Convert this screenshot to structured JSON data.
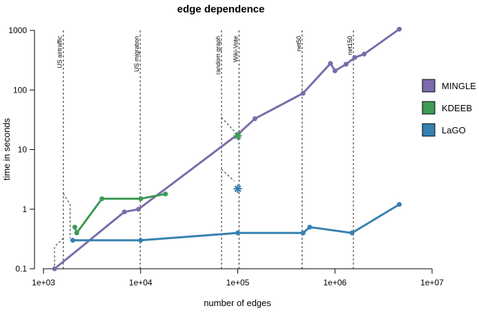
{
  "chart_data": {
    "type": "line",
    "title": "edge dependence",
    "xlabel": "number of edges",
    "ylabel": "time in seconds",
    "xscale": "log",
    "yscale": "log",
    "xlim": [
      1000,
      10000000
    ],
    "ylim": [
      0.1,
      1000
    ],
    "x_ticks": [
      {
        "value": 1000,
        "label": "1e+03"
      },
      {
        "value": 10000,
        "label": "1e+04"
      },
      {
        "value": 100000,
        "label": "1e+05"
      },
      {
        "value": 1000000,
        "label": "1e+06"
      },
      {
        "value": 10000000,
        "label": "1e+07"
      }
    ],
    "y_ticks": [
      {
        "value": 0.1,
        "label": "0.1"
      },
      {
        "value": 1,
        "label": "1"
      },
      {
        "value": 10,
        "label": "10"
      },
      {
        "value": 100,
        "label": "100"
      },
      {
        "value": 1000,
        "label": "1000"
      }
    ],
    "grid": false,
    "legend_position": "right",
    "series": [
      {
        "name": "MINGLE",
        "color": "#7b6bab",
        "points": [
          [
            1300,
            0.1
          ],
          [
            6800,
            0.9
          ],
          [
            9500,
            1.0
          ],
          [
            100000,
            18
          ],
          [
            150000,
            33
          ],
          [
            470000,
            88
          ],
          [
            900000,
            280
          ],
          [
            1000000,
            210
          ],
          [
            1300000,
            270
          ],
          [
            1600000,
            350
          ],
          [
            2000000,
            400
          ],
          [
            4600000,
            1050
          ]
        ]
      },
      {
        "name": "KDEEB",
        "color": "#3e9a54",
        "points": [
          [
            2100,
            0.5
          ],
          [
            2200,
            0.4
          ],
          [
            4000,
            1.5
          ],
          [
            10000,
            1.5
          ],
          [
            18000,
            1.8
          ]
        ]
      },
      {
        "name": "LaGO",
        "color": "#3680b0",
        "points": [
          [
            2000,
            0.3
          ],
          [
            10000,
            0.3
          ],
          [
            100000,
            0.4
          ],
          [
            470000,
            0.4
          ],
          [
            550000,
            0.5
          ],
          [
            1500000,
            0.4
          ],
          [
            4600000,
            1.2
          ]
        ]
      }
    ],
    "markers": [
      {
        "series": "KDEEB",
        "x": 100000,
        "y": 17,
        "symbol": "star"
      },
      {
        "series": "LaGO",
        "x": 100000,
        "y": 2.2,
        "symbol": "star"
      }
    ],
    "annotations": [
      {
        "label": "US airtraffic",
        "x": 1600
      },
      {
        "label": "US migration",
        "x": 9900
      },
      {
        "label": "random graph",
        "x": 68000
      },
      {
        "label": "Wiki-Vote",
        "x": 103000
      },
      {
        "label": "net50",
        "x": 460000
      },
      {
        "label": "net150",
        "x": 1550000
      }
    ]
  }
}
